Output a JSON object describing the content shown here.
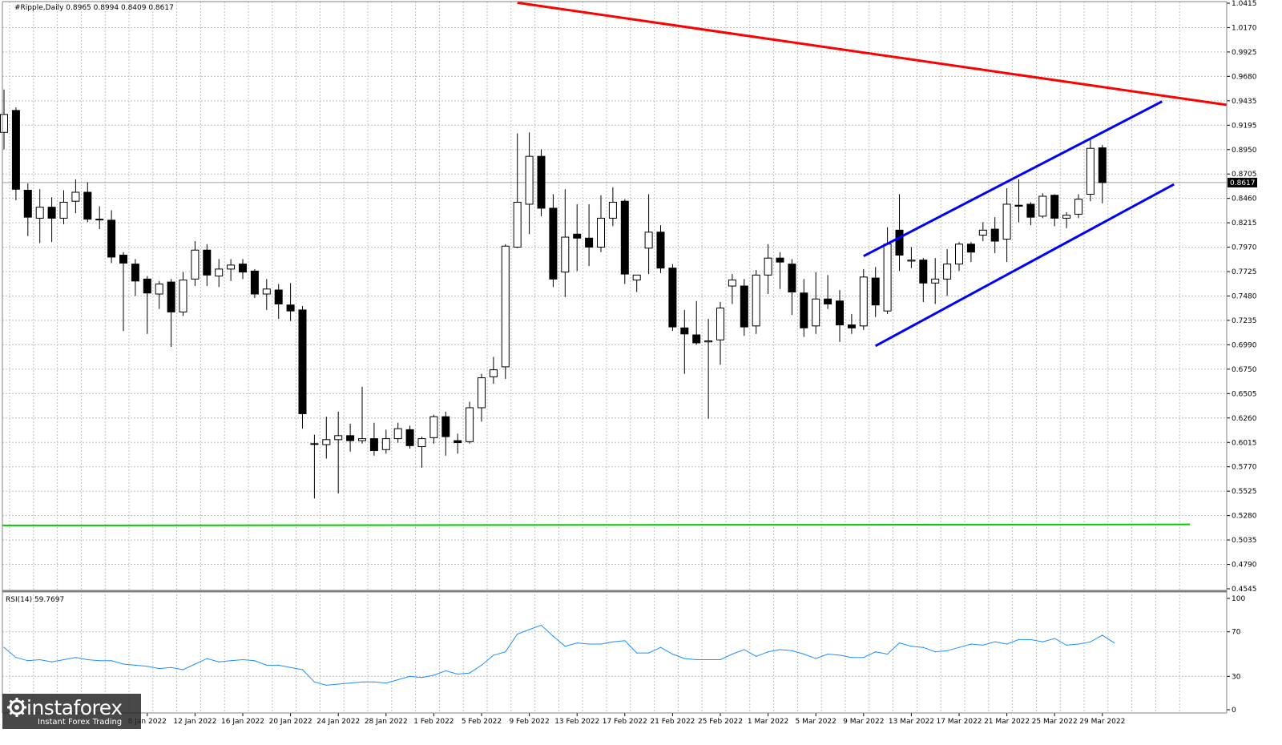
{
  "header": {
    "symbol": "#Ripple,Daily",
    "ohlc": "0.8965 0.8994 0.8409 0.8617",
    "rsi_label": "RSI(14) 59.7697"
  },
  "colors": {
    "red_line": "#ff0000",
    "blue_channel": "#0000ff",
    "green_line": "#00cc00",
    "rsi_line": "#1e90ff",
    "grid": "#c0c0c0"
  },
  "logo": {
    "brand": "instaforex",
    "tagline": "Instant Forex Trading",
    "icon": "gear-icon"
  },
  "chart_data": [
    {
      "type": "candlestick",
      "title": "#Ripple,Daily",
      "ylim": [
        0.4545,
        1.0415
      ],
      "y_ticks": [
        "1.0415",
        "1.0170",
        "0.9925",
        "0.9680",
        "0.9435",
        "0.9195",
        "0.8950",
        "0.8705",
        "0.8460",
        "0.8215",
        "0.7970",
        "0.7725",
        "0.7480",
        "0.7235",
        "0.6990",
        "0.6750",
        "0.6505",
        "0.6260",
        "0.6015",
        "0.5770",
        "0.5525",
        "0.5280",
        "0.5035",
        "0.4790",
        "0.4545"
      ],
      "current_price": "0.8617",
      "x_tick_labels": [
        "8 Jan 2022",
        "12 Jan 2022",
        "16 Jan 2022",
        "20 Jan 2022",
        "24 Jan 2022",
        "28 Jan 2022",
        "1 Feb 2022",
        "5 Feb 2022",
        "9 Feb 2022",
        "13 Feb 2022",
        "17 Feb 2022",
        "21 Feb 2022",
        "25 Feb 2022",
        "1 Mar 2022",
        "5 Mar 2022",
        "9 Mar 2022",
        "13 Mar 2022",
        "17 Mar 2022",
        "21 Mar 2022",
        "25 Mar 2022",
        "29 Mar 2022"
      ],
      "candles": [
        {
          "o": 0.912,
          "h": 0.955,
          "l": 0.895,
          "c": 0.93
        },
        {
          "o": 0.934,
          "h": 0.937,
          "l": 0.844,
          "c": 0.855
        },
        {
          "o": 0.854,
          "h": 0.861,
          "l": 0.808,
          "c": 0.827
        },
        {
          "o": 0.826,
          "h": 0.855,
          "l": 0.801,
          "c": 0.837
        },
        {
          "o": 0.837,
          "h": 0.847,
          "l": 0.802,
          "c": 0.826
        },
        {
          "o": 0.826,
          "h": 0.854,
          "l": 0.82,
          "c": 0.842
        },
        {
          "o": 0.843,
          "h": 0.865,
          "l": 0.831,
          "c": 0.852
        },
        {
          "o": 0.852,
          "h": 0.862,
          "l": 0.822,
          "c": 0.825
        },
        {
          "o": 0.825,
          "h": 0.838,
          "l": 0.815,
          "c": 0.825
        },
        {
          "o": 0.824,
          "h": 0.834,
          "l": 0.781,
          "c": 0.787
        },
        {
          "o": 0.789,
          "h": 0.792,
          "l": 0.713,
          "c": 0.781
        },
        {
          "o": 0.78,
          "h": 0.785,
          "l": 0.748,
          "c": 0.763
        },
        {
          "o": 0.765,
          "h": 0.768,
          "l": 0.71,
          "c": 0.751
        },
        {
          "o": 0.75,
          "h": 0.763,
          "l": 0.735,
          "c": 0.76
        },
        {
          "o": 0.762,
          "h": 0.765,
          "l": 0.697,
          "c": 0.732
        },
        {
          "o": 0.732,
          "h": 0.772,
          "l": 0.728,
          "c": 0.764
        },
        {
          "o": 0.765,
          "h": 0.803,
          "l": 0.758,
          "c": 0.794
        },
        {
          "o": 0.794,
          "h": 0.8,
          "l": 0.758,
          "c": 0.769
        },
        {
          "o": 0.768,
          "h": 0.785,
          "l": 0.757,
          "c": 0.775
        },
        {
          "o": 0.775,
          "h": 0.785,
          "l": 0.763,
          "c": 0.779
        },
        {
          "o": 0.78,
          "h": 0.785,
          "l": 0.765,
          "c": 0.772
        },
        {
          "o": 0.773,
          "h": 0.775,
          "l": 0.746,
          "c": 0.75
        },
        {
          "o": 0.75,
          "h": 0.765,
          "l": 0.734,
          "c": 0.755
        },
        {
          "o": 0.754,
          "h": 0.76,
          "l": 0.725,
          "c": 0.74
        },
        {
          "o": 0.739,
          "h": 0.761,
          "l": 0.723,
          "c": 0.733
        },
        {
          "o": 0.734,
          "h": 0.738,
          "l": 0.615,
          "c": 0.63
        },
        {
          "o": 0.6,
          "h": 0.609,
          "l": 0.545,
          "c": 0.6
        },
        {
          "o": 0.599,
          "h": 0.627,
          "l": 0.585,
          "c": 0.604
        },
        {
          "o": 0.604,
          "h": 0.632,
          "l": 0.55,
          "c": 0.608
        },
        {
          "o": 0.608,
          "h": 0.62,
          "l": 0.592,
          "c": 0.603
        },
        {
          "o": 0.603,
          "h": 0.657,
          "l": 0.6,
          "c": 0.605
        },
        {
          "o": 0.605,
          "h": 0.621,
          "l": 0.588,
          "c": 0.593
        },
        {
          "o": 0.594,
          "h": 0.614,
          "l": 0.59,
          "c": 0.605
        },
        {
          "o": 0.605,
          "h": 0.621,
          "l": 0.601,
          "c": 0.615
        },
        {
          "o": 0.614,
          "h": 0.618,
          "l": 0.595,
          "c": 0.598
        },
        {
          "o": 0.597,
          "h": 0.607,
          "l": 0.576,
          "c": 0.605
        },
        {
          "o": 0.606,
          "h": 0.629,
          "l": 0.6,
          "c": 0.627
        },
        {
          "o": 0.627,
          "h": 0.632,
          "l": 0.588,
          "c": 0.607
        },
        {
          "o": 0.603,
          "h": 0.61,
          "l": 0.59,
          "c": 0.601
        },
        {
          "o": 0.602,
          "h": 0.642,
          "l": 0.6,
          "c": 0.636
        },
        {
          "o": 0.636,
          "h": 0.67,
          "l": 0.622,
          "c": 0.666
        },
        {
          "o": 0.667,
          "h": 0.687,
          "l": 0.66,
          "c": 0.674
        },
        {
          "o": 0.677,
          "h": 0.8,
          "l": 0.665,
          "c": 0.798
        },
        {
          "o": 0.797,
          "h": 0.911,
          "l": 0.796,
          "c": 0.842
        },
        {
          "o": 0.84,
          "h": 0.912,
          "l": 0.81,
          "c": 0.888
        },
        {
          "o": 0.888,
          "h": 0.895,
          "l": 0.828,
          "c": 0.836
        },
        {
          "o": 0.836,
          "h": 0.85,
          "l": 0.757,
          "c": 0.765
        },
        {
          "o": 0.772,
          "h": 0.855,
          "l": 0.747,
          "c": 0.807
        },
        {
          "o": 0.81,
          "h": 0.84,
          "l": 0.773,
          "c": 0.806
        },
        {
          "o": 0.806,
          "h": 0.84,
          "l": 0.778,
          "c": 0.797
        },
        {
          "o": 0.797,
          "h": 0.849,
          "l": 0.792,
          "c": 0.826
        },
        {
          "o": 0.826,
          "h": 0.857,
          "l": 0.818,
          "c": 0.842
        },
        {
          "o": 0.843,
          "h": 0.845,
          "l": 0.76,
          "c": 0.77
        },
        {
          "o": 0.764,
          "h": 0.768,
          "l": 0.752,
          "c": 0.769
        },
        {
          "o": 0.796,
          "h": 0.85,
          "l": 0.77,
          "c": 0.812
        },
        {
          "o": 0.812,
          "h": 0.819,
          "l": 0.771,
          "c": 0.776
        },
        {
          "o": 0.776,
          "h": 0.78,
          "l": 0.713,
          "c": 0.717
        },
        {
          "o": 0.716,
          "h": 0.734,
          "l": 0.67,
          "c": 0.71
        },
        {
          "o": 0.709,
          "h": 0.743,
          "l": 0.699,
          "c": 0.701
        },
        {
          "o": 0.702,
          "h": 0.725,
          "l": 0.625,
          "c": 0.703
        },
        {
          "o": 0.704,
          "h": 0.742,
          "l": 0.679,
          "c": 0.736
        },
        {
          "o": 0.758,
          "h": 0.77,
          "l": 0.74,
          "c": 0.764
        },
        {
          "o": 0.758,
          "h": 0.765,
          "l": 0.708,
          "c": 0.717
        },
        {
          "o": 0.718,
          "h": 0.774,
          "l": 0.71,
          "c": 0.769
        },
        {
          "o": 0.769,
          "h": 0.8,
          "l": 0.75,
          "c": 0.786
        },
        {
          "o": 0.786,
          "h": 0.792,
          "l": 0.755,
          "c": 0.782
        },
        {
          "o": 0.78,
          "h": 0.785,
          "l": 0.729,
          "c": 0.752
        },
        {
          "o": 0.751,
          "h": 0.765,
          "l": 0.707,
          "c": 0.716
        },
        {
          "o": 0.718,
          "h": 0.772,
          "l": 0.71,
          "c": 0.745
        },
        {
          "o": 0.745,
          "h": 0.769,
          "l": 0.735,
          "c": 0.74
        },
        {
          "o": 0.743,
          "h": 0.754,
          "l": 0.702,
          "c": 0.719
        },
        {
          "o": 0.719,
          "h": 0.73,
          "l": 0.71,
          "c": 0.716
        },
        {
          "o": 0.718,
          "h": 0.775,
          "l": 0.714,
          "c": 0.767
        },
        {
          "o": 0.766,
          "h": 0.777,
          "l": 0.727,
          "c": 0.739
        },
        {
          "o": 0.733,
          "h": 0.817,
          "l": 0.73,
          "c": 0.8
        },
        {
          "o": 0.814,
          "h": 0.85,
          "l": 0.773,
          "c": 0.789
        },
        {
          "o": 0.783,
          "h": 0.797,
          "l": 0.776,
          "c": 0.784
        },
        {
          "o": 0.784,
          "h": 0.786,
          "l": 0.742,
          "c": 0.761
        },
        {
          "o": 0.761,
          "h": 0.786,
          "l": 0.74,
          "c": 0.765
        },
        {
          "o": 0.765,
          "h": 0.795,
          "l": 0.748,
          "c": 0.78
        },
        {
          "o": 0.78,
          "h": 0.802,
          "l": 0.773,
          "c": 0.8
        },
        {
          "o": 0.8,
          "h": 0.802,
          "l": 0.782,
          "c": 0.792
        },
        {
          "o": 0.809,
          "h": 0.822,
          "l": 0.803,
          "c": 0.814
        },
        {
          "o": 0.815,
          "h": 0.827,
          "l": 0.791,
          "c": 0.803
        },
        {
          "o": 0.805,
          "h": 0.856,
          "l": 0.782,
          "c": 0.84
        },
        {
          "o": 0.839,
          "h": 0.865,
          "l": 0.822,
          "c": 0.838
        },
        {
          "o": 0.84,
          "h": 0.842,
          "l": 0.819,
          "c": 0.827
        },
        {
          "o": 0.828,
          "h": 0.851,
          "l": 0.826,
          "c": 0.848
        },
        {
          "o": 0.849,
          "h": 0.85,
          "l": 0.818,
          "c": 0.826
        },
        {
          "o": 0.826,
          "h": 0.832,
          "l": 0.816,
          "c": 0.829
        },
        {
          "o": 0.83,
          "h": 0.85,
          "l": 0.826,
          "c": 0.845
        },
        {
          "o": 0.85,
          "h": 0.906,
          "l": 0.843,
          "c": 0.896
        },
        {
          "o": 0.8965,
          "h": 0.8994,
          "l": 0.8409,
          "c": 0.8617
        }
      ],
      "overlays": [
        {
          "name": "red-trendline",
          "color": "#ff0000",
          "from": [
            43,
            1.042
          ],
          "to": [
            119,
            0.911
          ]
        },
        {
          "name": "blue-channel-upper",
          "color": "#0000ff",
          "from": [
            72,
            0.788
          ],
          "to": [
            97,
            0.943
          ]
        },
        {
          "name": "blue-channel-lower",
          "color": "#0000ff",
          "from": [
            73,
            0.698
          ],
          "to": [
            98,
            0.86
          ]
        },
        {
          "name": "green-support",
          "color": "#00cc00",
          "from": [
            0,
            0.518
          ],
          "to": [
            98,
            0.519
          ]
        }
      ]
    },
    {
      "type": "line",
      "title": "RSI(14) 59.7697",
      "ylim": [
        0,
        100
      ],
      "y_ticks": [
        "100",
        "70",
        "30",
        "0"
      ],
      "values": [
        56,
        47,
        44,
        45,
        43,
        45,
        47,
        45,
        44,
        44,
        41,
        40,
        39,
        37,
        38,
        36,
        41,
        46,
        43,
        44,
        45,
        44,
        40,
        40,
        38,
        36,
        25,
        22,
        23,
        24,
        25,
        25,
        24,
        27,
        30,
        29,
        31,
        35,
        32,
        33,
        40,
        49,
        52,
        68,
        72,
        76,
        66,
        57,
        60,
        59,
        59,
        61,
        62,
        51,
        51,
        56,
        50,
        46,
        45,
        45,
        45,
        50,
        54,
        48,
        52,
        54,
        53,
        50,
        46,
        50,
        49,
        47,
        47,
        52,
        50,
        60,
        57,
        56,
        52,
        53,
        56,
        59,
        58,
        61,
        59,
        63,
        63,
        61,
        64,
        58,
        59,
        61,
        67,
        60
      ]
    }
  ]
}
